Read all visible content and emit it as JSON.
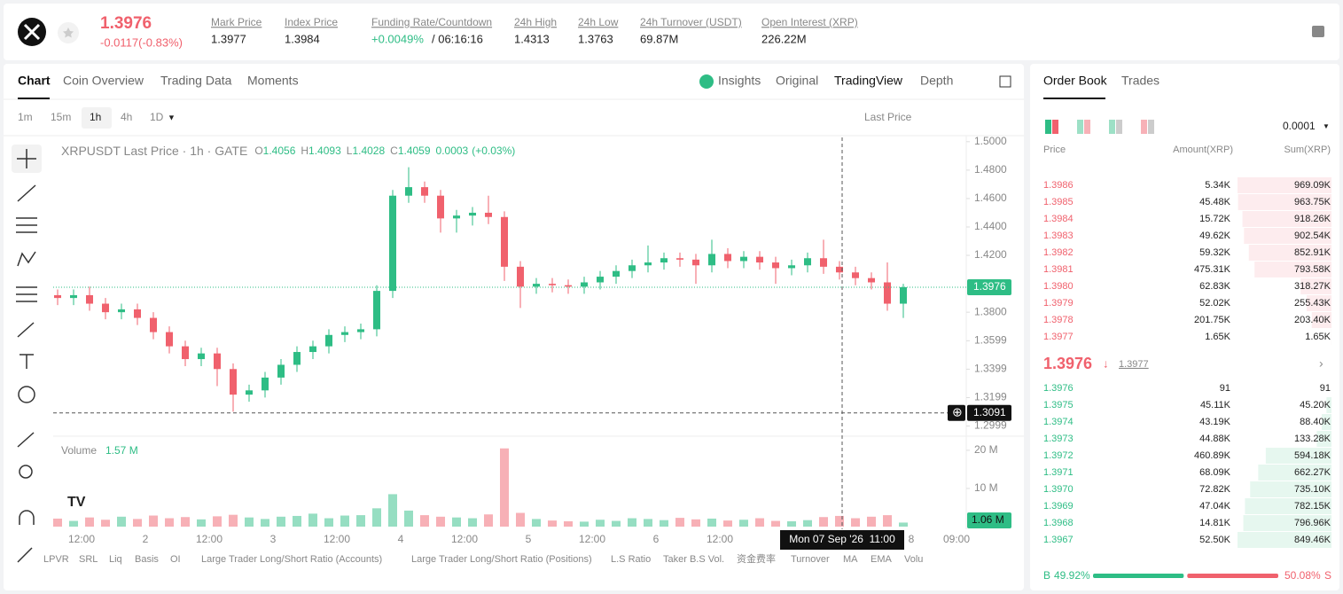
{
  "header": {
    "price": "1.3976",
    "change": "-0.0117(-0.83%)",
    "stats": [
      {
        "label": "Mark Price",
        "value": "1.3977"
      },
      {
        "label": "Index Price",
        "value": "1.3984"
      },
      {
        "label": "Funding Rate/Countdown",
        "value": "+0.0049%",
        "extra": "/ 06:16:16"
      },
      {
        "label": "24h High",
        "value": "1.4313"
      },
      {
        "label": "24h Low",
        "value": "1.3763"
      },
      {
        "label": "24h Turnover (USDT)",
        "value": "69.87M"
      },
      {
        "label": "Open Interest (XRP)",
        "value": "226.22M"
      }
    ]
  },
  "chart_tabs": [
    "Chart",
    "Coin Overview",
    "Trading Data",
    "Moments"
  ],
  "view_tabs": [
    "Insights",
    "Original",
    "TradingView",
    "Depth"
  ],
  "intervals": [
    "1m",
    "15m",
    "1h",
    "4h",
    "1D"
  ],
  "price_type": "Last Price",
  "chart_data": {
    "type": "candlestick",
    "legend": {
      "symbol": "XRPUSDT Last Price · 1h · GATE",
      "o_label": "O",
      "o": "1.4056",
      "h_label": "H",
      "h": "1.4093",
      "l_label": "L",
      "l": "1.4028",
      "c_label": "C",
      "c": "1.4059",
      "change": "0.0003",
      "pct": "(+0.03%)"
    },
    "open": [
      1.392,
      1.39,
      1.392,
      1.386,
      1.38,
      1.382,
      1.376,
      1.366,
      1.356,
      1.347,
      1.351,
      1.34,
      1.322,
      1.325,
      1.334,
      1.343,
      1.352,
      1.356,
      1.364,
      1.366,
      1.368,
      1.395,
      1.462,
      1.468,
      1.462,
      1.446,
      1.448,
      1.45,
      1.447,
      1.412,
      1.398,
      1.4,
      1.399,
      1.398,
      1.401,
      1.405,
      1.409,
      1.413,
      1.415,
      1.418,
      1.417,
      1.413,
      1.421,
      1.416,
      1.419,
      1.415,
      1.411,
      1.413,
      1.418,
      1.412,
      1.408,
      1.404,
      1.401,
      1.386
    ],
    "high": [
      1.396,
      1.396,
      1.398,
      1.39,
      1.386,
      1.386,
      1.38,
      1.37,
      1.36,
      1.355,
      1.355,
      1.344,
      1.329,
      1.338,
      1.347,
      1.356,
      1.36,
      1.368,
      1.37,
      1.372,
      1.399,
      1.466,
      1.482,
      1.472,
      1.466,
      1.452,
      1.454,
      1.462,
      1.451,
      1.416,
      1.404,
      1.404,
      1.403,
      1.405,
      1.409,
      1.413,
      1.417,
      1.427,
      1.422,
      1.422,
      1.421,
      1.431,
      1.425,
      1.423,
      1.423,
      1.419,
      1.417,
      1.422,
      1.431,
      1.416,
      1.412,
      1.408,
      1.415,
      1.4
    ],
    "low": [
      1.385,
      1.385,
      1.381,
      1.375,
      1.375,
      1.371,
      1.361,
      1.351,
      1.342,
      1.342,
      1.328,
      1.31,
      1.317,
      1.32,
      1.329,
      1.338,
      1.347,
      1.351,
      1.359,
      1.361,
      1.363,
      1.39,
      1.457,
      1.457,
      1.436,
      1.436,
      1.441,
      1.442,
      1.402,
      1.383,
      1.393,
      1.394,
      1.393,
      1.393,
      1.396,
      1.4,
      1.404,
      1.408,
      1.41,
      1.412,
      1.4,
      1.408,
      1.411,
      1.411,
      1.41,
      1.4,
      1.406,
      1.408,
      1.407,
      1.403,
      1.399,
      1.396,
      1.381,
      1.376
    ],
    "close": [
      1.39,
      1.392,
      1.386,
      1.38,
      1.382,
      1.376,
      1.366,
      1.356,
      1.347,
      1.351,
      1.34,
      1.322,
      1.325,
      1.334,
      1.343,
      1.352,
      1.356,
      1.364,
      1.366,
      1.368,
      1.395,
      1.462,
      1.468,
      1.462,
      1.446,
      1.448,
      1.45,
      1.447,
      1.412,
      1.398,
      1.4,
      1.399,
      1.398,
      1.401,
      1.405,
      1.409,
      1.413,
      1.415,
      1.418,
      1.417,
      1.413,
      1.421,
      1.416,
      1.419,
      1.415,
      1.411,
      1.413,
      1.418,
      1.412,
      1.408,
      1.404,
      1.401,
      1.386,
      1.3976
    ],
    "volume": {
      "label": "Volume",
      "current": "1.57 M",
      "values": [
        2.1,
        1.5,
        2.4,
        1.8,
        2.6,
        2.0,
        2.9,
        2.2,
        2.5,
        1.9,
        2.7,
        3.1,
        2.4,
        2.0,
        2.6,
        2.8,
        3.4,
        2.2,
        2.9,
        3.0,
        4.8,
        8.5,
        4.2,
        3.0,
        2.6,
        2.4,
        2.2,
        3.2,
        20.5,
        3.6,
        2.0,
        1.6,
        1.4,
        1.3,
        1.8,
        1.5,
        2.2,
        2.0,
        1.7,
        2.3,
        1.9,
        2.1,
        1.6,
        1.8,
        2.2,
        1.5,
        1.4,
        1.7,
        2.5,
        2.8,
        2.2,
        2.6,
        3.0,
        1.06
      ],
      "last_label": "1.06 M",
      "ylim": [
        0,
        23
      ],
      "yticks": [
        {
          "value": 20,
          "label": "20 M"
        },
        {
          "value": 10,
          "label": "10 M"
        }
      ]
    },
    "ylim": [
      1.294,
      1.503
    ],
    "yticks": [
      {
        "value": 1.5,
        "label": "1.5000"
      },
      {
        "value": 1.48,
        "label": "1.4800"
      },
      {
        "value": 1.46,
        "label": "1.4600"
      },
      {
        "value": 1.44,
        "label": "1.4400"
      },
      {
        "value": 1.42,
        "label": "1.4200"
      },
      {
        "value": 1.38,
        "label": "1.3800"
      },
      1.3599,
      1.3399,
      1.3199,
      1.2999
    ],
    "last_price": 1.3976,
    "crosshair_price": 1.3091,
    "crosshair_time": "Mon 07 Sep '26  11:00",
    "x_labels": [
      "12:00",
      "2",
      "12:00",
      "3",
      "12:00",
      "4",
      "12:00",
      "5",
      "12:00",
      "6",
      "12:00",
      "8",
      "09:00"
    ],
    "up_color": "#2ebd85",
    "down_color": "#f0616d"
  },
  "indicators": [
    "LPVR",
    "SRL",
    "Liq",
    "Basis",
    "OI",
    "Large Trader Long/Short Ratio (Accounts)",
    "Large Trader Long/Short Ratio (Positions)",
    "L.S Ratio",
    "Taker B.S Vol.",
    "资金费率",
    "Turnover",
    "MA",
    "EMA",
    "Volu"
  ],
  "order_book": {
    "tabs": [
      "Order Book",
      "Trades"
    ],
    "precision": "0.0001",
    "columns": [
      "Price",
      "Amount(XRP)",
      "Sum(XRP)"
    ],
    "asks": [
      [
        "1.3986",
        "5.34K",
        "969.09K"
      ],
      [
        "1.3985",
        "45.48K",
        "963.75K"
      ],
      [
        "1.3984",
        "15.72K",
        "918.26K"
      ],
      [
        "1.3983",
        "49.62K",
        "902.54K"
      ],
      [
        "1.3982",
        "59.32K",
        "852.91K"
      ],
      [
        "1.3981",
        "475.31K",
        "793.58K"
      ],
      [
        "1.3980",
        "62.83K",
        "318.27K"
      ],
      [
        "1.3979",
        "52.02K",
        "255.43K"
      ],
      [
        "1.3978",
        "201.75K",
        "203.40K"
      ],
      [
        "1.3977",
        "1.65K",
        "1.65K"
      ]
    ],
    "mid_price": "1.3976",
    "mark_price": "1.3977",
    "bids": [
      [
        "1.3976",
        "91",
        "91"
      ],
      [
        "1.3975",
        "45.11K",
        "45.20K"
      ],
      [
        "1.3974",
        "43.19K",
        "88.40K"
      ],
      [
        "1.3973",
        "44.88K",
        "133.28K"
      ],
      [
        "1.3972",
        "460.89K",
        "594.18K"
      ],
      [
        "1.3971",
        "68.09K",
        "662.27K"
      ],
      [
        "1.3970",
        "72.82K",
        "735.10K"
      ],
      [
        "1.3969",
        "47.04K",
        "782.15K"
      ],
      [
        "1.3968",
        "14.81K",
        "796.96K"
      ],
      [
        "1.3967",
        "52.50K",
        "849.46K"
      ]
    ],
    "ratio": {
      "buy_letter": "B",
      "sell_letter": "S",
      "buy": 49.92,
      "sell": 50.08,
      "value_labels": [
        "49.92%",
        "50.08%"
      ]
    }
  }
}
